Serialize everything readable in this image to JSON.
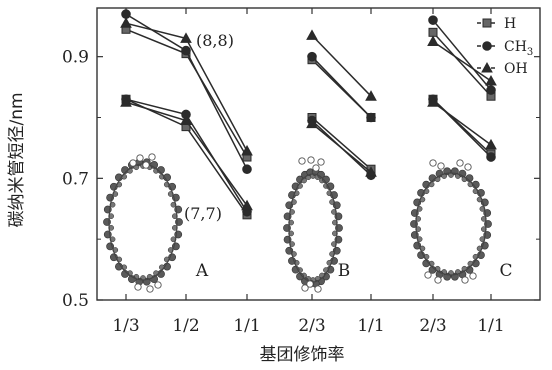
{
  "chart_data": {
    "type": "line",
    "xlabel": "基团修饰率",
    "ylabel": "碳纳米管短径/nm",
    "ylim": [
      0.5,
      0.98
    ],
    "yticks": [
      "0.5",
      "0.7",
      "0.9"
    ],
    "grid": false,
    "legend_position": "top-right",
    "panels": [
      {
        "label": "A",
        "x": [
          "1/3",
          "1/2",
          "1/1"
        ],
        "groups": [
          {
            "label": "(8,8)",
            "series": [
              {
                "name": "H",
                "values": [
                  0.945,
                  0.905,
                  0.735
                ]
              },
              {
                "name": "CH3",
                "values": [
                  0.97,
                  0.91,
                  0.715
                ]
              },
              {
                "name": "OH",
                "values": [
                  0.955,
                  0.93,
                  0.745
                ]
              }
            ]
          },
          {
            "label": "(7,7)",
            "series": [
              {
                "name": "H",
                "values": [
                  0.83,
                  0.785,
                  0.64
                ]
              },
              {
                "name": "CH3",
                "values": [
                  0.83,
                  0.805,
                  0.645
                ]
              },
              {
                "name": "OH",
                "values": [
                  0.825,
                  0.795,
                  0.655
                ]
              }
            ]
          }
        ]
      },
      {
        "label": "B",
        "x": [
          "2/3",
          "1/1"
        ],
        "groups": [
          {
            "label": "",
            "series": [
              {
                "name": "H",
                "values": [
                  0.895,
                  0.8
                ]
              },
              {
                "name": "CH3",
                "values": [
                  0.9,
                  0.8
                ]
              },
              {
                "name": "OH",
                "values": [
                  0.935,
                  0.835
                ]
              }
            ]
          },
          {
            "label": "",
            "series": [
              {
                "name": "H",
                "values": [
                  0.8,
                  0.715
                ]
              },
              {
                "name": "CH3",
                "values": [
                  0.795,
                  0.705
                ]
              },
              {
                "name": "OH",
                "values": [
                  0.79,
                  0.71
                ]
              }
            ]
          }
        ]
      },
      {
        "label": "C",
        "x": [
          "2/3",
          "1/1"
        ],
        "groups": [
          {
            "label": "",
            "series": [
              {
                "name": "H",
                "values": [
                  0.94,
                  0.835
                ]
              },
              {
                "name": "CH3",
                "values": [
                  0.96,
                  0.845
                ]
              },
              {
                "name": "OH",
                "values": [
                  0.925,
                  0.86
                ]
              }
            ]
          },
          {
            "label": "",
            "series": [
              {
                "name": "H",
                "values": [
                  0.83,
                  0.74
                ]
              },
              {
                "name": "CH3",
                "values": [
                  0.83,
                  0.735
                ]
              },
              {
                "name": "OH",
                "values": [
                  0.825,
                  0.755
                ]
              }
            ]
          }
        ]
      }
    ],
    "legend": [
      {
        "name": "H",
        "marker": "square"
      },
      {
        "name": "CH3",
        "marker": "circle"
      },
      {
        "name": "OH",
        "marker": "triangle"
      }
    ],
    "colors": {
      "line": "#2b2b2b",
      "tube": "#5a5a5a"
    }
  }
}
